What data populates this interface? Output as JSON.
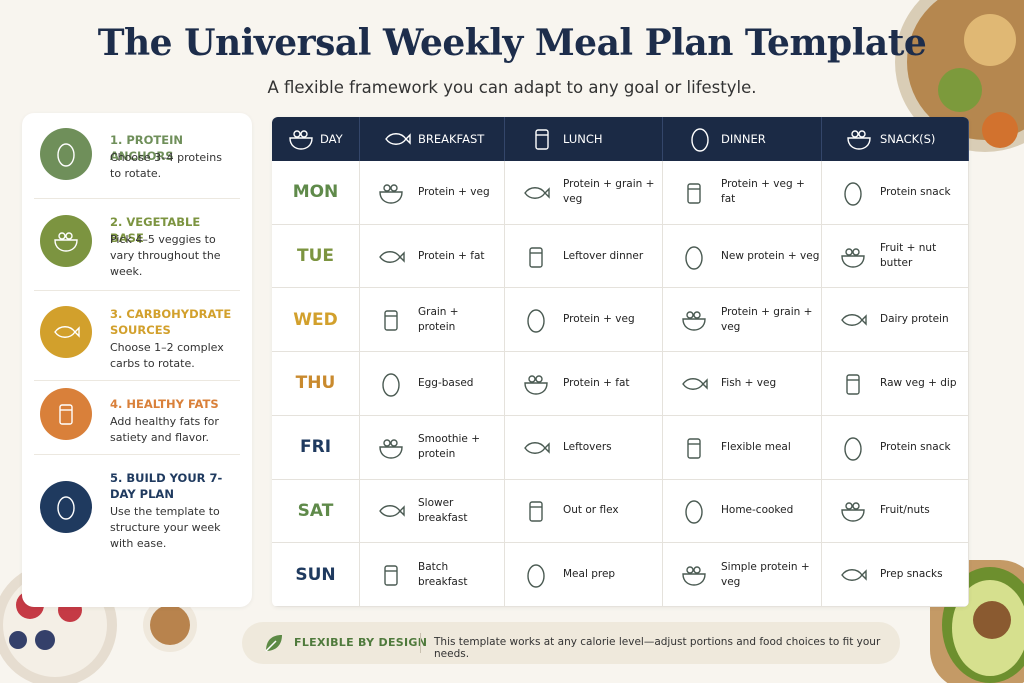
{
  "header": {
    "title": "The Universal Weekly Meal Plan Template",
    "subtitle": "A flexible framework you can adapt to any goal or lifestyle."
  },
  "sidebar": [
    {
      "title": "1. PROTEIN ANCHORS",
      "text": "Choose 3–4 proteins to rotate."
    },
    {
      "title": "2. VEGETABLE BASE",
      "text": "Pick 4–5 veggies to vary throughout the week."
    },
    {
      "title": "3. CARBOHYDRATE SOURCES",
      "text": "Choose 1–2 complex carbs to rotate."
    },
    {
      "title": "4. HEALTHY FATS",
      "text": "Add healthy fats for satiety and flavor."
    },
    {
      "title": "5. BUILD YOUR 7-DAY PLAN",
      "text": "Use the template to structure your week with ease."
    }
  ],
  "table": {
    "columns": [
      "DAY",
      "BREAKFAST",
      "LUNCH",
      "DINNER",
      "SNACK(S)"
    ],
    "rows": [
      [
        "MON",
        "Protein + veg",
        "Protein + grain + veg",
        "Protein + veg + fat",
        "Protein snack"
      ],
      [
        "TUE",
        "Protein + fat",
        "Leftover dinner",
        "New protein + veg",
        "Fruit + nut butter"
      ],
      [
        "WED",
        "Grain + protein",
        "Protein + veg",
        "Protein + grain + veg",
        "Dairy protein"
      ],
      [
        "THU",
        "Egg-based",
        "Protein + fat",
        "Fish + veg",
        "Raw veg + dip"
      ],
      [
        "FRI",
        "Smoothie + protein",
        "Leftovers",
        "Flexible meal",
        "Protein snack"
      ],
      [
        "SAT",
        "Slower breakfast",
        "Out or flex",
        "Home-cooked",
        "Fruit/nuts"
      ],
      [
        "SUN",
        "Batch breakfast",
        "Meal prep",
        "Simple protein + veg",
        "Prep snacks"
      ]
    ]
  },
  "footer": {
    "label": "FLEXIBLE BY DESIGN",
    "text": "This template works at any calorie level—adjust portions and food choices to fit your needs."
  }
}
